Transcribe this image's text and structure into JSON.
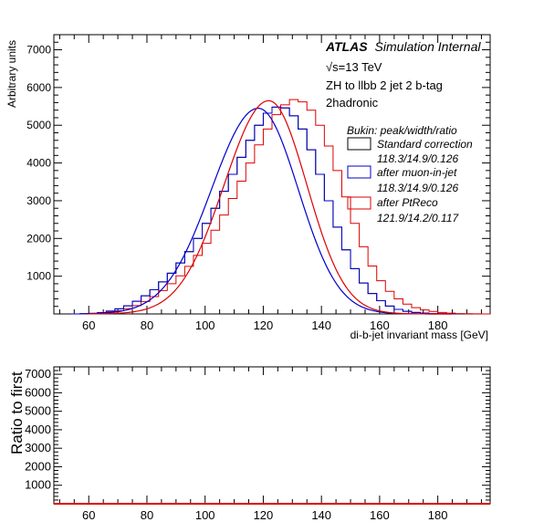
{
  "chart_data": [
    {
      "type": "histogram",
      "xlabel": "di-b-jet invariant mass [GeV]",
      "ylabel": "Arbitrary units",
      "xlim": [
        48,
        198
      ],
      "ylim": [
        0,
        7400
      ],
      "xticks": [
        60,
        80,
        100,
        120,
        140,
        160,
        180
      ],
      "yticks": [
        1000,
        2000,
        3000,
        4000,
        5000,
        6000,
        7000
      ],
      "bin_width": 3,
      "bin_start": 54,
      "annotations": {
        "atlas": "ATLAS",
        "atlas_suffix": "Simulation Internal",
        "energy": "√s=13 TeV",
        "process": "ZH to llbb 2 jet 2 b-tag",
        "category": "2hadronic"
      },
      "legend": {
        "title": "Bukin: peak/width/ratio",
        "placement": "top-right"
      },
      "series": [
        {
          "name": "Standard correction",
          "fit_params": "118.3/14.9/0.126",
          "color": "#000000",
          "bukin": {
            "peak": 118.3,
            "width": 14.9,
            "norm": 5450
          },
          "values": [
            0,
            5,
            15,
            35,
            75,
            135,
            215,
            335,
            480,
            640,
            850,
            1080,
            1350,
            1650,
            2000,
            2400,
            2800,
            3250,
            3700,
            4150,
            4600,
            5000,
            5320,
            5480,
            5460,
            5250,
            4900,
            4350,
            3700,
            3000,
            2300,
            1700,
            1200,
            820,
            540,
            350,
            210,
            120,
            70,
            40,
            20,
            10,
            5,
            0
          ]
        },
        {
          "name": "after muon-in-jet",
          "fit_params": "118.3/14.9/0.126",
          "color": "#0000cc",
          "bukin": {
            "peak": 118.3,
            "width": 14.9,
            "norm": 5450
          },
          "values": [
            0,
            5,
            15,
            35,
            75,
            135,
            215,
            335,
            480,
            640,
            850,
            1080,
            1350,
            1650,
            2000,
            2400,
            2800,
            3250,
            3700,
            4150,
            4600,
            5000,
            5320,
            5480,
            5460,
            5250,
            4900,
            4350,
            3700,
            3000,
            2300,
            1700,
            1200,
            820,
            540,
            350,
            210,
            120,
            70,
            40,
            20,
            10,
            5,
            0
          ]
        },
        {
          "name": "after PtReco",
          "fit_params": "121.9/14.2/0.117",
          "color": "#dd0000",
          "bukin": {
            "peak": 121.9,
            "width": 14.2,
            "norm": 5650
          },
          "values": [
            0,
            2,
            8,
            20,
            45,
            85,
            140,
            220,
            330,
            460,
            620,
            800,
            1010,
            1260,
            1550,
            1870,
            2220,
            2620,
            3060,
            3520,
            4000,
            4480,
            4900,
            5280,
            5540,
            5680,
            5620,
            5400,
            5000,
            4450,
            3800,
            3100,
            2400,
            1780,
            1270,
            880,
            600,
            400,
            260,
            165,
            105,
            65,
            40,
            20,
            10,
            5,
            2,
            0
          ]
        }
      ]
    },
    {
      "type": "line",
      "ylabel": "Ratio to first",
      "xlim": [
        48,
        198
      ],
      "ylim": [
        0,
        7400
      ],
      "xticks": [
        60,
        80,
        100,
        120,
        140,
        160,
        180
      ],
      "yticks": [
        1000,
        2000,
        3000,
        4000,
        5000,
        6000,
        7000
      ],
      "series": [
        {
          "color": "#dd0000",
          "x": [
            48,
            198
          ],
          "values": [
            1,
            1
          ]
        }
      ]
    }
  ]
}
